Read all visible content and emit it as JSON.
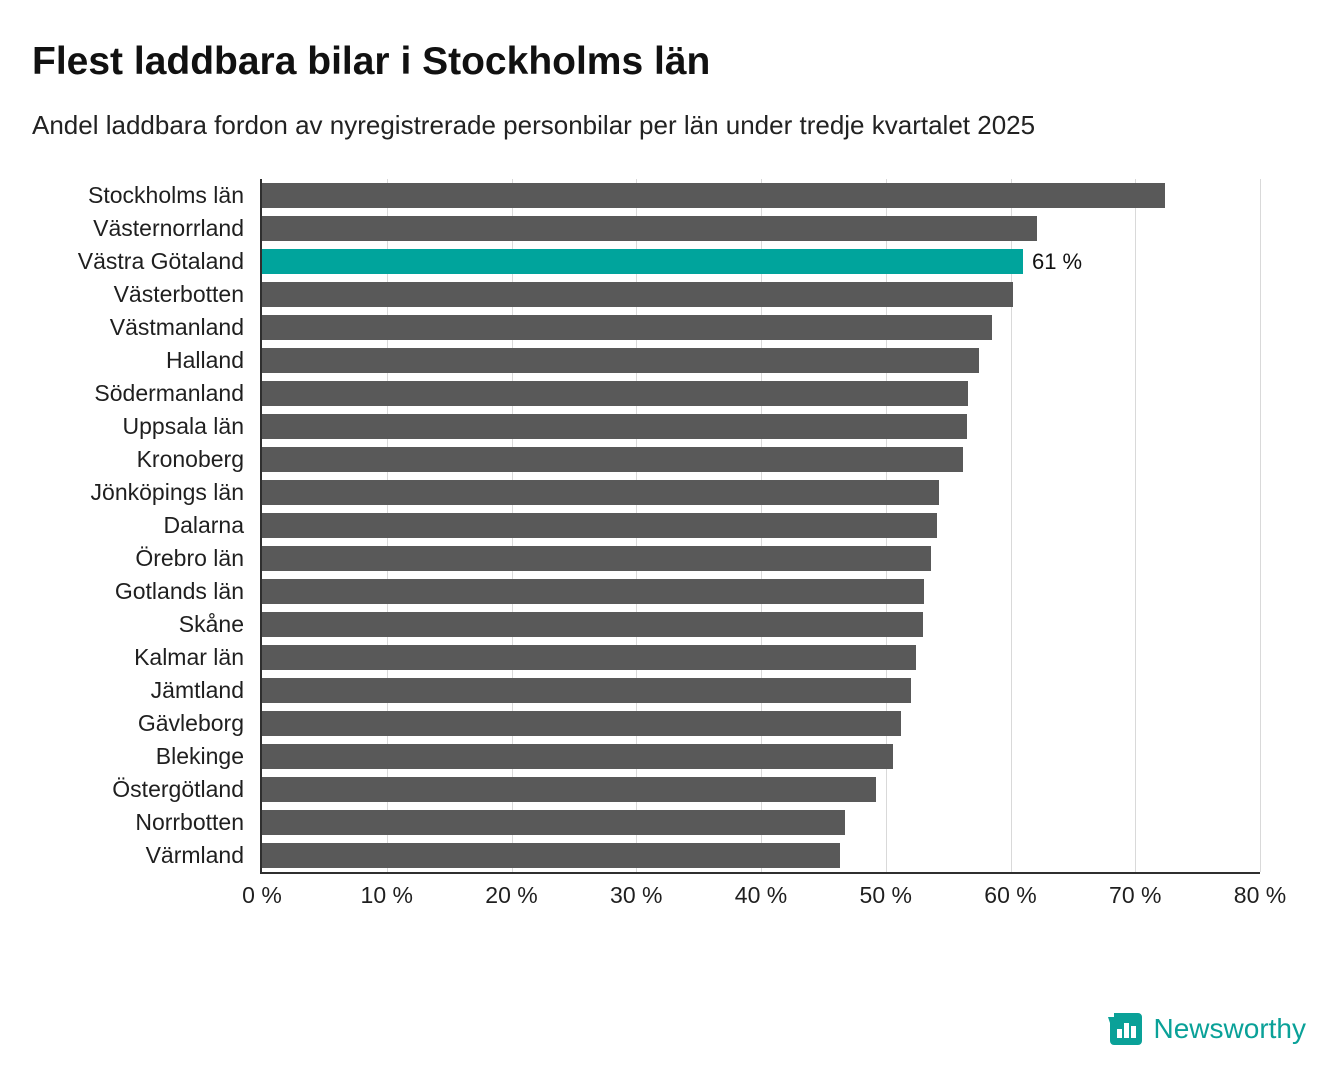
{
  "header": {
    "title": "Flest laddbara bilar i Stockholms län",
    "subtitle": "Andel laddbara fordon av nyregistrerade personbilar per län under tredje kvartalet 2025"
  },
  "chart_data": {
    "type": "bar",
    "orientation": "horizontal",
    "title": "Flest laddbara bilar i Stockholms län",
    "subtitle": "Andel laddbara fordon av nyregistrerade personbilar per län under tredje kvartalet 2025",
    "xlabel": "",
    "ylabel": "",
    "xlim": [
      0,
      80
    ],
    "grid": true,
    "categories": [
      "Stockholms län",
      "Västernorrland",
      "Västra Götaland",
      "Västerbotten",
      "Västmanland",
      "Halland",
      "Södermanland",
      "Uppsala län",
      "Kronoberg",
      "Jönköpings län",
      "Dalarna",
      "Örebro län",
      "Gotlands län",
      "Skåne",
      "Kalmar län",
      "Jämtland",
      "Gävleborg",
      "Blekinge",
      "Östergötland",
      "Norrbotten",
      "Värmland"
    ],
    "values": [
      72.4,
      62.1,
      61,
      60.2,
      58.5,
      57.5,
      56.6,
      56.5,
      56.2,
      54.3,
      54.1,
      53.6,
      53.1,
      53.0,
      52.4,
      52.0,
      51.2,
      50.6,
      49.2,
      46.7,
      46.3
    ],
    "highlight_index": 2,
    "highlight_label": "61 %",
    "x_ticks": [
      {
        "value": 0,
        "label": "0 %"
      },
      {
        "value": 10,
        "label": "10 %"
      },
      {
        "value": 20,
        "label": "20 %"
      },
      {
        "value": 30,
        "label": "30 %"
      },
      {
        "value": 40,
        "label": "40 %"
      },
      {
        "value": 50,
        "label": "50 %"
      },
      {
        "value": 60,
        "label": "60 %"
      },
      {
        "value": 70,
        "label": "70 %"
      },
      {
        "value": 80,
        "label": "80 %"
      }
    ],
    "colors": {
      "bar": "#595959",
      "highlight": "#00a49c",
      "gridline": "#d9d9d9",
      "axis": "#2f2f2f"
    }
  },
  "footer": {
    "brand": "Newsworthy",
    "logo_icon": "bar-chart-bubble-icon",
    "brand_color": "#0aa198"
  }
}
